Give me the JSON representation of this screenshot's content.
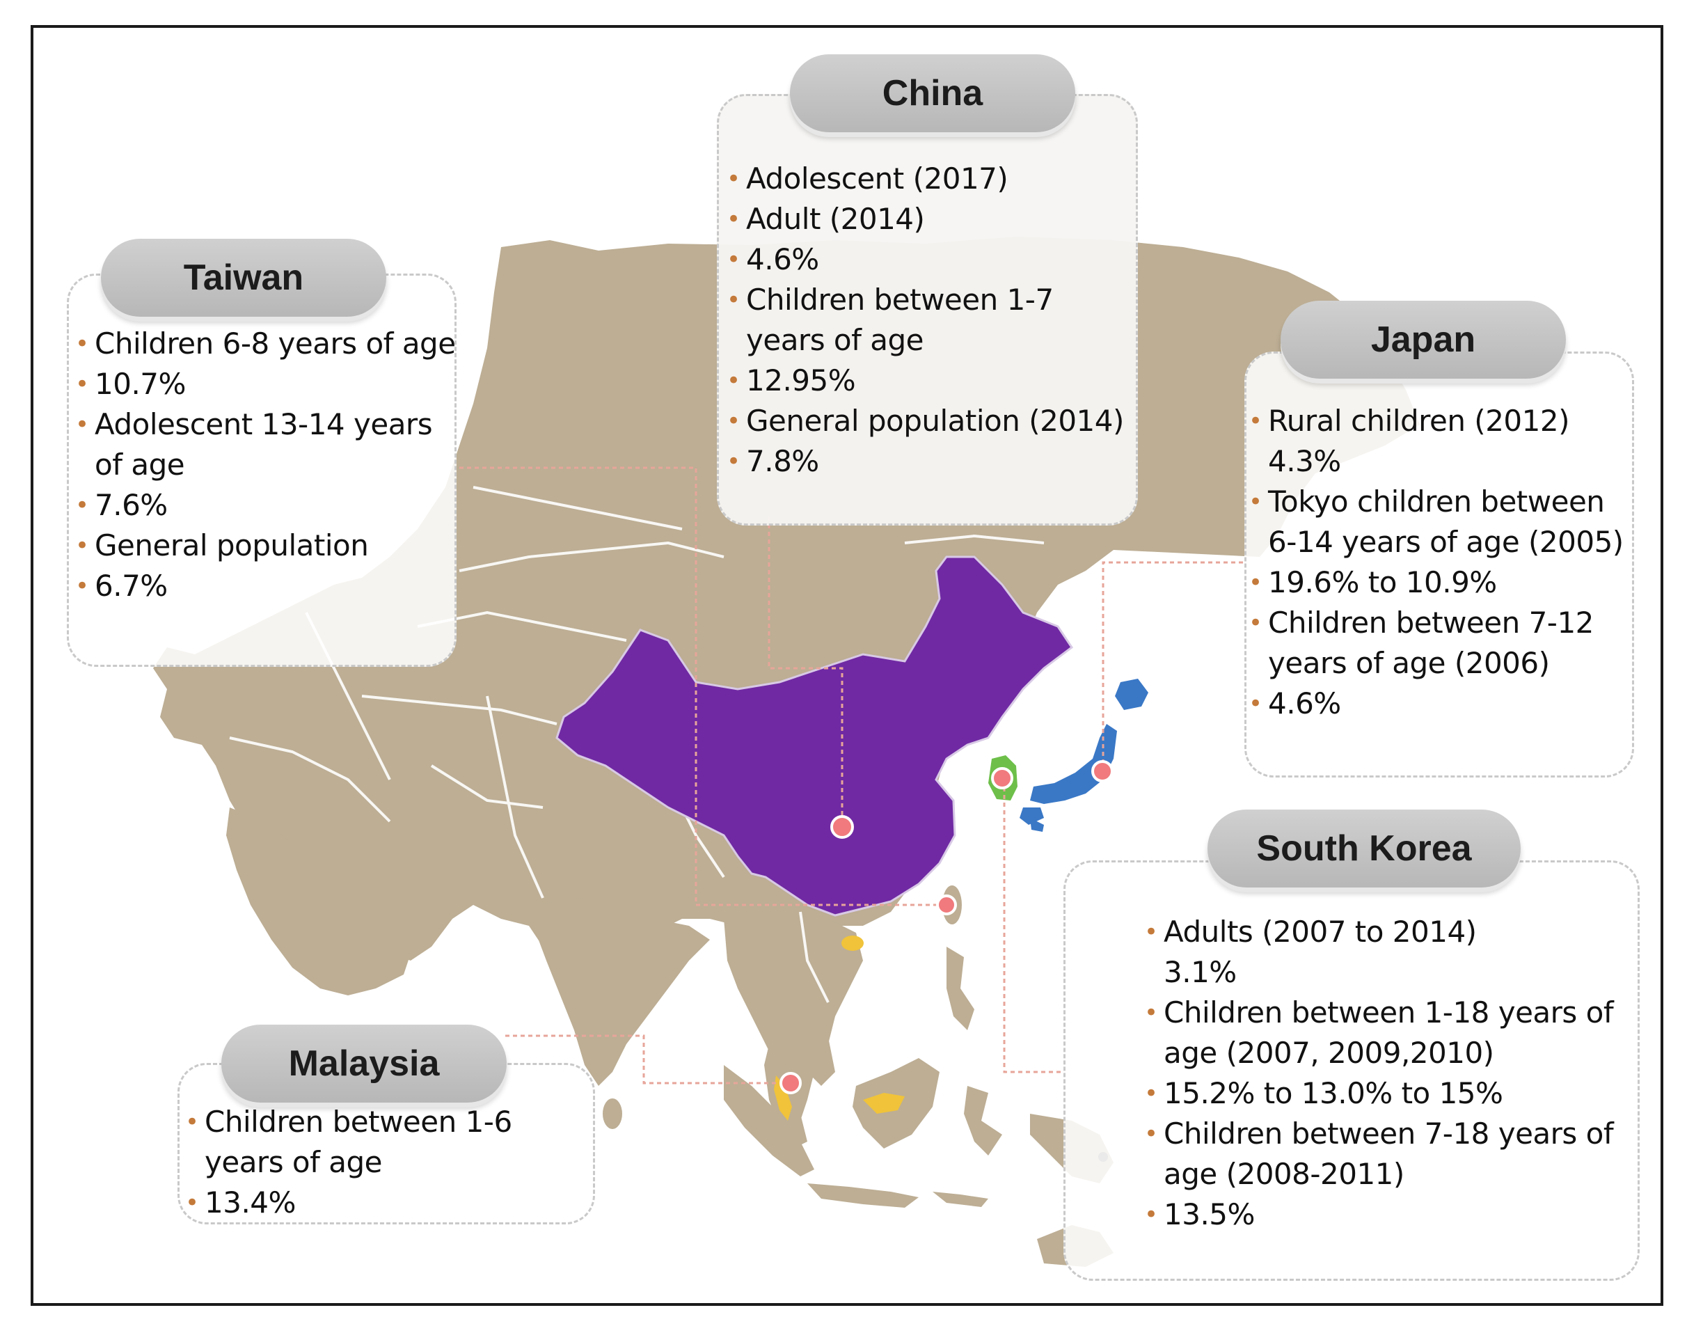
{
  "colors": {
    "land": "#bdae94",
    "border_lines": "#ffffff",
    "china": "#7029a3",
    "japan": "#3a78c6",
    "korea": "#6dbf4a",
    "malaysia": "#f0c33a",
    "marker": "#f07a7d",
    "bullet": "#c47a3a",
    "connector": "#e7a59a"
  },
  "boxes": {
    "china": {
      "title": "China",
      "items": [
        "Adolescent (2017)",
        "Adult (2014)",
        "4.6%",
        "Children between 1-7 years of age",
        "12.95%",
        "General population (2014)",
        "7.8%"
      ]
    },
    "taiwan": {
      "title": "Taiwan",
      "items": [
        "Children 6-8 years of age",
        "10.7%",
        "Adolescent 13-14 years of age",
        "7.6%",
        "General population",
        "6.7%"
      ]
    },
    "japan": {
      "title": "Japan",
      "items": [
        "Rural children (2012)",
        "4.3%",
        "Tokyo children between 6-14 years of age (2005)",
        "19.6% to 10.9%",
        "Children between 7-12 years of age (2006)",
        "4.6%"
      ]
    },
    "south_korea": {
      "title": "South Korea",
      "items": [
        "Adults (2007 to 2014)",
        "3.1%",
        "Children between 1-18 years of age (2007, 2009,2010)",
        "15.2% to 13.0% to 15%",
        "Children between 7-18 years of age (2008-2011)",
        "13.5%"
      ]
    },
    "malaysia": {
      "title": "Malaysia",
      "items": [
        "Children between 1-6 years of age",
        "13.4%"
      ]
    }
  }
}
